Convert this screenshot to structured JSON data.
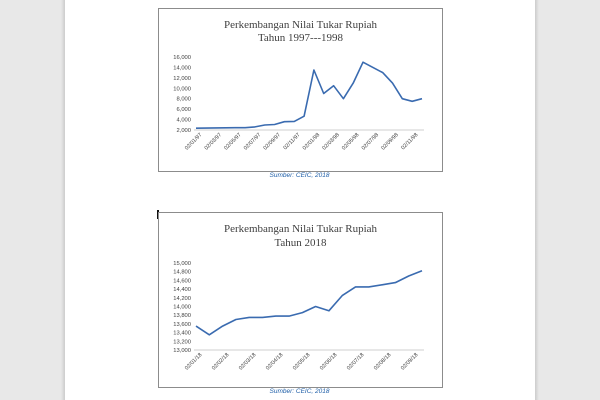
{
  "document": {
    "text_cursor": "I"
  },
  "charts": [
    {
      "title_line1": "Perkembangan Nilai Tukar Rupiah",
      "title_line2": "Tahun 1997---1998",
      "source": "Sumber: CEIC, 2018"
    },
    {
      "title_line1": "Perkembangan Nilai Tukar Rupiah",
      "title_line2": "Tahun 2018",
      "source": "Sumber: CEIC, 2018"
    }
  ],
  "chart_data": [
    {
      "type": "line",
      "title": "Perkembangan Nilai Tukar Rupiah Tahun 1997---1998",
      "xlabel": "",
      "ylabel": "",
      "x_ticks": [
        "02/01/97",
        "02/03/97",
        "02/05/97",
        "02/07/97",
        "02/09/97",
        "02/11/97",
        "02/01/98",
        "02/03/98",
        "02/05/98",
        "02/07/98",
        "02/09/98",
        "02/11/98"
      ],
      "y_ticks": [
        "2,000",
        "4,000",
        "6,000",
        "8,000",
        "10,000",
        "12,000",
        "14,000",
        "16,000"
      ],
      "ylim": [
        2000,
        16000
      ],
      "x": [
        "1997-01",
        "1997-02",
        "1997-03",
        "1997-04",
        "1997-05",
        "1997-06",
        "1997-07",
        "1997-08",
        "1997-09",
        "1997-10",
        "1997-11",
        "1997-12",
        "1998-01",
        "1998-02",
        "1998-03",
        "1998-04",
        "1998-05",
        "1998-06",
        "1998-07",
        "1998-08",
        "1998-09",
        "1998-10",
        "1998-11",
        "1998-12"
      ],
      "series": [
        {
          "values": [
            2350,
            2370,
            2400,
            2420,
            2440,
            2450,
            2600,
            2950,
            3050,
            3600,
            3650,
            4650,
            13500,
            9000,
            10500,
            8000,
            11000,
            15000,
            14000,
            13000,
            11000,
            8000,
            7500,
            8000
          ]
        }
      ],
      "color": "#3a6bb0",
      "grid": false,
      "legend": "none"
    },
    {
      "type": "line",
      "title": "Perkembangan Nilai Tukar Rupiah Tahun 2018",
      "xlabel": "",
      "ylabel": "",
      "x_ticks": [
        "02/01/18",
        "02/02/18",
        "02/03/18",
        "02/04/18",
        "02/05/18",
        "02/06/18",
        "02/07/18",
        "02/08/18",
        "02/09/18"
      ],
      "y_ticks": [
        "13,000",
        "13,200",
        "13,400",
        "13,600",
        "13,800",
        "14,000",
        "14,200",
        "14,400",
        "14,600",
        "14,800",
        "15,000"
      ],
      "ylim": [
        13000,
        15000
      ],
      "x": [
        "2018-01-02",
        "2018-01-15",
        "2018-02-02",
        "2018-02-15",
        "2018-03-02",
        "2018-03-15",
        "2018-04-02",
        "2018-04-15",
        "2018-05-02",
        "2018-05-15",
        "2018-06-02",
        "2018-06-15",
        "2018-07-02",
        "2018-07-15",
        "2018-08-02",
        "2018-08-15",
        "2018-09-02",
        "2018-09-10"
      ],
      "series": [
        {
          "values": [
            13550,
            13350,
            13550,
            13700,
            13750,
            13750,
            13780,
            13780,
            13860,
            14000,
            13900,
            14250,
            14450,
            14450,
            14500,
            14550,
            14700,
            14820
          ]
        }
      ],
      "color": "#3a6bb0",
      "grid": false,
      "legend": "none"
    }
  ]
}
